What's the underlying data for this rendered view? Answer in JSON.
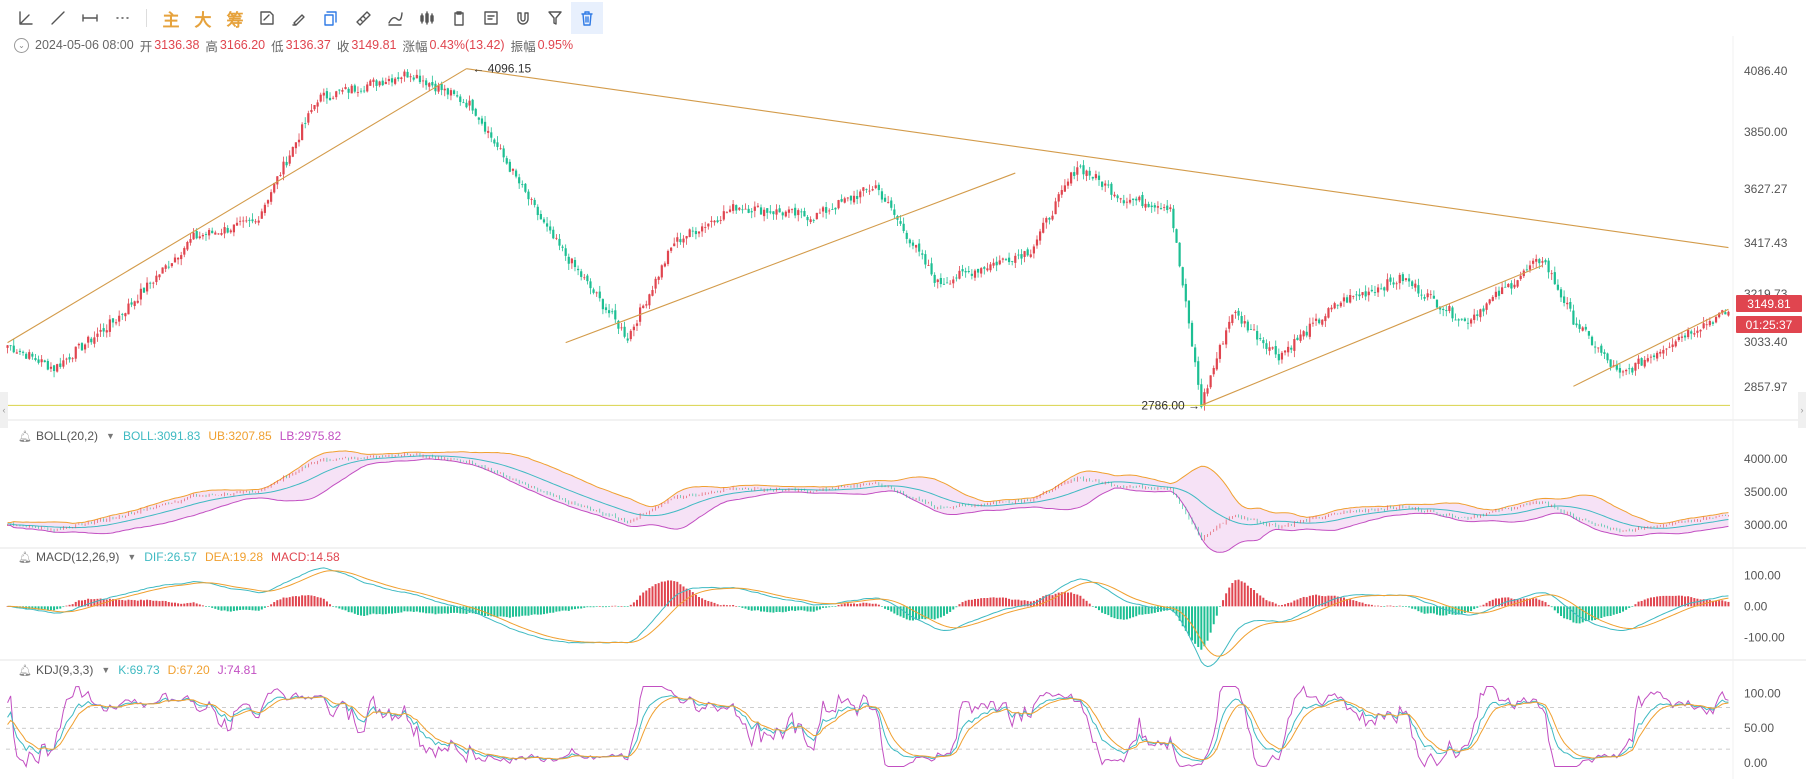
{
  "toolbar": {
    "tools": [
      {
        "icon": "trendline-angle-icon"
      },
      {
        "icon": "line-draw-icon"
      },
      {
        "icon": "horizontal-ray-icon"
      },
      {
        "icon": "more-dots-icon"
      }
    ],
    "cn_buttons": [
      "主",
      "大",
      "筹"
    ],
    "tools2": [
      {
        "icon": "note-edit-icon"
      },
      {
        "icon": "pencil-brush-icon"
      },
      {
        "icon": "copy-icon"
      },
      {
        "icon": "ruler-icon"
      },
      {
        "icon": "pen-draw-icon"
      },
      {
        "icon": "candle-pattern-icon"
      },
      {
        "icon": "clipboard-icon"
      },
      {
        "icon": "edit-doc-icon"
      },
      {
        "icon": "magnet-icon"
      },
      {
        "icon": "filter-icon"
      },
      {
        "icon": "trash-icon"
      }
    ]
  },
  "ohlc": {
    "date": "2024-05-06 08:00",
    "open_label": "开",
    "open": "3136.38",
    "high_label": "高",
    "high": "3166.20",
    "low_label": "低",
    "low": "3136.37",
    "close_label": "收",
    "close": "3149.81",
    "change_label": "涨幅",
    "change": "0.43%(13.42)",
    "amp_label": "振幅",
    "amp": "0.95%"
  },
  "price_tag": {
    "value": "3149.81",
    "countdown": "01:25:37",
    "color": "#e0454f"
  },
  "annotations": {
    "high": "4096.15",
    "low": "2786.00"
  },
  "colors": {
    "up": "#e0454f",
    "down": "#1dbf93",
    "trend": "#d39b4a",
    "support": "#d9d34a",
    "boll_mid": "#3fbac2",
    "boll_ub": "#f0a030",
    "boll_lb": "#c24fc2",
    "dif": "#3fbac2",
    "dea": "#f0a030",
    "k": "#3fbac2",
    "d": "#f0a030",
    "j": "#c24fc2"
  },
  "boll": {
    "name": "BOLL(20,2)",
    "mid": "BOLL:3091.83",
    "ub": "UB:3207.85",
    "lb": "LB:2975.82"
  },
  "macd": {
    "name": "MACD(12,26,9)",
    "dif": "DIF:26.57",
    "dea": "DEA:19.28",
    "macd": "MACD:14.58"
  },
  "kdj": {
    "name": "KDJ(9,3,3)",
    "k": "K:69.73",
    "d": "D:67.20",
    "j": "J:74.81"
  },
  "chart_data": [
    {
      "type": "candlestick",
      "y_ticks": [
        "4086.40",
        "3850.00",
        "3627.27",
        "3417.43",
        "3219.73",
        "3033.40",
        "2857.97"
      ],
      "ylim": [
        2760,
        4130
      ],
      "key_points": [
        {
          "x": 0,
          "y": 3020
        },
        {
          "x": 15,
          "y": 2930
        },
        {
          "x": 35,
          "y": 3120
        },
        {
          "x": 60,
          "y": 3440
        },
        {
          "x": 80,
          "y": 3500
        },
        {
          "x": 100,
          "y": 3980
        },
        {
          "x": 130,
          "y": 4080
        },
        {
          "x": 150,
          "y": 3950
        },
        {
          "x": 175,
          "y": 3450
        },
        {
          "x": 200,
          "y": 3050
        },
        {
          "x": 215,
          "y": 3420
        },
        {
          "x": 235,
          "y": 3560
        },
        {
          "x": 260,
          "y": 3520
        },
        {
          "x": 280,
          "y": 3640
        },
        {
          "x": 300,
          "y": 3260
        },
        {
          "x": 330,
          "y": 3390
        },
        {
          "x": 345,
          "y": 3720
        },
        {
          "x": 360,
          "y": 3590
        },
        {
          "x": 375,
          "y": 3560
        },
        {
          "x": 385,
          "y": 2790
        },
        {
          "x": 395,
          "y": 3150
        },
        {
          "x": 410,
          "y": 2980
        },
        {
          "x": 430,
          "y": 3190
        },
        {
          "x": 450,
          "y": 3280
        },
        {
          "x": 470,
          "y": 3110
        },
        {
          "x": 495,
          "y": 3360
        },
        {
          "x": 505,
          "y": 3120
        },
        {
          "x": 520,
          "y": 2900
        },
        {
          "x": 540,
          "y": 3060
        },
        {
          "x": 555,
          "y": 3150
        }
      ],
      "trendlines": [
        {
          "from": [
            0,
            3030
          ],
          "to": [
            148,
            4096.15
          ]
        },
        {
          "from": [
            148,
            4096.15
          ],
          "to": [
            555,
            3400
          ]
        },
        {
          "from": [
            180,
            3030
          ],
          "to": [
            325,
            3690
          ]
        },
        {
          "from": [
            385,
            2786
          ],
          "to": [
            495,
            3330
          ]
        },
        {
          "from": [
            505,
            2860
          ],
          "to": [
            555,
            3160
          ]
        }
      ],
      "support_level": 2786.0
    },
    {
      "type": "line",
      "name": "BOLL",
      "y_ticks": [
        "4000.00",
        "3500.00",
        "3000.00"
      ],
      "ylim": [
        2700,
        4200
      ]
    },
    {
      "type": "bar",
      "name": "MACD",
      "y_ticks": [
        "100.00",
        "0.00",
        "-100.00"
      ],
      "ylim": [
        -160,
        130
      ]
    },
    {
      "type": "line",
      "name": "KDJ",
      "y_ticks": [
        "100.00",
        "50.00",
        "0.00"
      ],
      "ylim": [
        -10,
        115
      ],
      "ref_lines": [
        80,
        50,
        20
      ]
    }
  ]
}
